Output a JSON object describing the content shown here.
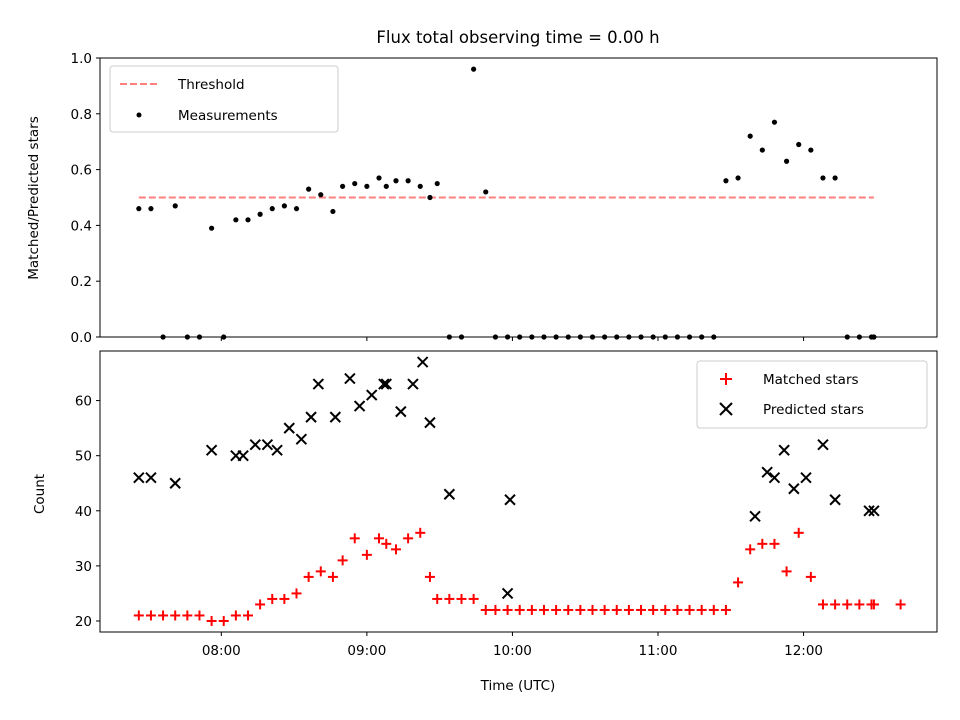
{
  "title": "Flux total observing time = 0.00 h",
  "colors": {
    "threshold": "#ff7f7f",
    "measurement": "#000000",
    "matched": "#ff0000",
    "predicted": "#000000"
  },
  "chart_data": [
    {
      "type": "scatter",
      "ylabel": "Matched/Predicted stars",
      "xlabel": "",
      "xlim": [
        "07:10",
        "12:55"
      ],
      "ylim": [
        0,
        1.0
      ],
      "yticks": [
        "0.0",
        "0.2",
        "0.4",
        "0.6",
        "0.8",
        "1.0"
      ],
      "legend": {
        "placement": "upper-left",
        "entries": [
          "Threshold",
          "Measurements"
        ]
      },
      "threshold": {
        "name": "Threshold",
        "value": 0.5,
        "x_range": [
          "07:26",
          "12:29"
        ],
        "style": "dashed"
      },
      "series": [
        {
          "name": "Measurements",
          "x": [
            "07:26",
            "07:31",
            "07:36",
            "07:41",
            "07:46",
            "07:51",
            "07:56",
            "08:01",
            "08:06",
            "08:11",
            "08:16",
            "08:21",
            "08:26",
            "08:31",
            "08:36",
            "08:41",
            "08:46",
            "08:50",
            "08:55",
            "09:00",
            "09:05",
            "09:08",
            "09:12",
            "09:17",
            "09:22",
            "09:26",
            "09:29",
            "09:34",
            "09:39",
            "09:44",
            "09:49",
            "09:53",
            "09:58",
            "10:03",
            "10:08",
            "10:13",
            "10:18",
            "10:23",
            "10:28",
            "10:33",
            "10:38",
            "10:43",
            "10:48",
            "10:53",
            "10:58",
            "11:03",
            "11:08",
            "11:13",
            "11:18",
            "11:23",
            "11:28",
            "11:33",
            "11:38",
            "11:43",
            "11:48",
            "11:53",
            "11:58",
            "12:03",
            "12:08",
            "12:13",
            "12:18",
            "12:23",
            "12:28",
            "12:29"
          ],
          "values": [
            0.46,
            0.46,
            0.0,
            0.47,
            0.0,
            0.0,
            0.39,
            0.0,
            0.42,
            0.42,
            0.44,
            0.46,
            0.47,
            0.46,
            0.53,
            0.51,
            0.45,
            0.54,
            0.55,
            0.54,
            0.57,
            0.54,
            0.56,
            0.56,
            0.54,
            0.5,
            0.55,
            0.0,
            0.0,
            0.96,
            0.52,
            0.0,
            0.0,
            0.0,
            0.0,
            0.0,
            0.0,
            0.0,
            0.0,
            0.0,
            0.0,
            0.0,
            0.0,
            0.0,
            0.0,
            0.0,
            0.0,
            0.0,
            0.0,
            0.0,
            0.56,
            0.57,
            0.72,
            0.67,
            0.77,
            0.63,
            0.69,
            0.67,
            0.57,
            0.57,
            0.0,
            0.0,
            0.0,
            0.0
          ]
        }
      ]
    },
    {
      "type": "scatter",
      "xlabel": "Time (UTC)",
      "ylabel": "Count",
      "xlim": [
        "07:10",
        "12:55"
      ],
      "ylim": [
        18,
        69
      ],
      "xticks": [
        "08:00",
        "09:00",
        "10:00",
        "11:00",
        "12:00"
      ],
      "yticks": [
        "20",
        "30",
        "40",
        "50",
        "60"
      ],
      "legend": {
        "placement": "upper-right",
        "entries": [
          "Matched stars",
          "Predicted stars"
        ]
      },
      "series": [
        {
          "name": "Matched stars",
          "x": [
            "07:26",
            "07:31",
            "07:36",
            "07:41",
            "07:46",
            "07:51",
            "07:56",
            "08:01",
            "08:06",
            "08:11",
            "08:16",
            "08:21",
            "08:26",
            "08:31",
            "08:36",
            "08:41",
            "08:46",
            "08:50",
            "08:55",
            "09:00",
            "09:05",
            "09:08",
            "09:12",
            "09:17",
            "09:22",
            "09:26",
            "09:29",
            "09:34",
            "09:39",
            "09:44",
            "09:49",
            "09:53",
            "09:58",
            "10:03",
            "10:08",
            "10:13",
            "10:18",
            "10:23",
            "10:28",
            "10:33",
            "10:38",
            "10:43",
            "10:48",
            "10:53",
            "10:58",
            "11:03",
            "11:08",
            "11:13",
            "11:18",
            "11:23",
            "11:28",
            "11:33",
            "11:38",
            "11:43",
            "11:48",
            "11:53",
            "11:58",
            "12:03",
            "12:08",
            "12:13",
            "12:18",
            "12:23",
            "12:28",
            "12:29",
            "12:40"
          ],
          "values": [
            21,
            21,
            21,
            21,
            21,
            21,
            20,
            20,
            21,
            21,
            23,
            24,
            24,
            25,
            28,
            29,
            28,
            31,
            35,
            32,
            35,
            34,
            33,
            35,
            36,
            28,
            24,
            24,
            24,
            24,
            22,
            22,
            22,
            22,
            22,
            22,
            22,
            22,
            22,
            22,
            22,
            22,
            22,
            22,
            22,
            22,
            22,
            22,
            22,
            22,
            22,
            27,
            33,
            34,
            34,
            29,
            36,
            28,
            23,
            23,
            23,
            23,
            23,
            23,
            23
          ]
        },
        {
          "name": "Predicted stars",
          "x": [
            "07:26",
            "07:31",
            "07:41",
            "07:56",
            "08:06",
            "08:09",
            "08:14",
            "08:19",
            "08:23",
            "08:28",
            "08:33",
            "08:37",
            "08:40",
            "08:47",
            "08:53",
            "08:57",
            "09:02",
            "09:07",
            "09:08",
            "09:14",
            "09:19",
            "09:23",
            "09:26",
            "09:34",
            "09:58",
            "09:59",
            "11:40",
            "11:45",
            "11:48",
            "11:52",
            "11:56",
            "12:01",
            "12:08",
            "12:13",
            "12:27",
            "12:29"
          ],
          "values": [
            46,
            46,
            45,
            51,
            50,
            50,
            52,
            52,
            51,
            55,
            53,
            57,
            63,
            57,
            64,
            59,
            61,
            63,
            63,
            58,
            63,
            67,
            56,
            43,
            25,
            42,
            39,
            47,
            46,
            51,
            44,
            46,
            52,
            42,
            40,
            40
          ]
        }
      ]
    }
  ]
}
